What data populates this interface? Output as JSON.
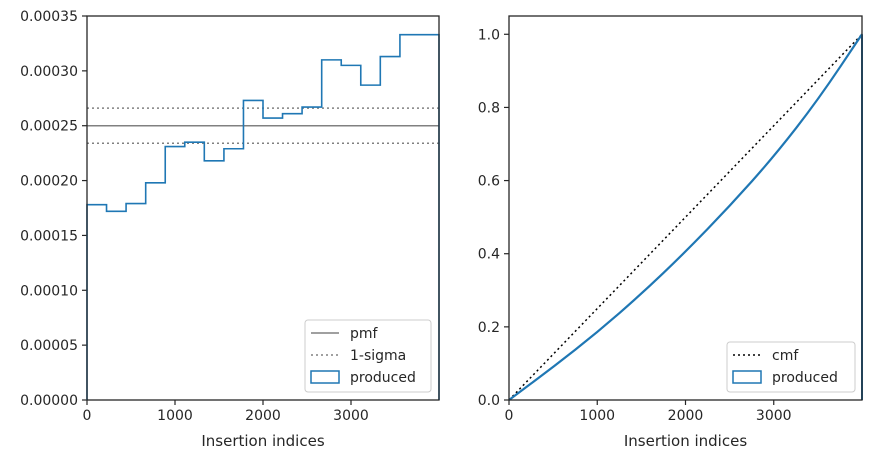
{
  "chart_data": [
    {
      "type": "histogram-step",
      "xlabel": "Insertion indices",
      "ylabel": "",
      "xlim": [
        0,
        4000
      ],
      "ylim": [
        0,
        0.00035
      ],
      "xticks": [
        "0",
        "1000",
        "2000",
        "3000"
      ],
      "yticks": [
        "0.00000",
        "0.00005",
        "0.00010",
        "0.00015",
        "0.00020",
        "0.00025",
        "0.00030",
        "0.00035"
      ],
      "legend_position": "lower-right",
      "grid": false,
      "bin_edges": [
        0,
        222,
        444,
        667,
        889,
        1111,
        1333,
        1556,
        1778,
        2000,
        2222,
        2444,
        2667,
        2889,
        3111,
        3333,
        3556,
        3778,
        4000
      ],
      "series": [
        {
          "name": "pmf",
          "style": "solid",
          "color": "#808080",
          "value": 0.00025
        },
        {
          "name": "1-sigma",
          "style": "dotted",
          "color": "#808080",
          "values": [
            0.000234,
            0.000266
          ]
        },
        {
          "name": "produced",
          "style": "step",
          "color": "#1f77b4",
          "values": [
            0.000178,
            0.000172,
            0.000179,
            0.000198,
            0.000231,
            0.000235,
            0.000218,
            0.000229,
            0.000273,
            0.000257,
            0.000261,
            0.000267,
            0.00031,
            0.000305,
            0.000287,
            0.000313,
            0.000333,
            0.000333
          ]
        }
      ]
    },
    {
      "type": "line",
      "xlabel": "Insertion indices",
      "ylabel": "",
      "xlim": [
        0,
        4000
      ],
      "ylim": [
        0,
        1.05
      ],
      "xticks": [
        "0",
        "1000",
        "2000",
        "3000"
      ],
      "yticks": [
        "0.0",
        "0.2",
        "0.4",
        "0.6",
        "0.8",
        "1.0"
      ],
      "legend_position": "lower-right",
      "grid": false,
      "series": [
        {
          "name": "cmf",
          "style": "dotted",
          "color": "#000000",
          "x": [
            0,
            4000
          ],
          "y": [
            0,
            1.0
          ]
        },
        {
          "name": "produced",
          "style": "solid",
          "color": "#1f77b4",
          "x": [
            0,
            500,
            1000,
            1500,
            2000,
            2500,
            3000,
            3500,
            4000
          ],
          "y": [
            0,
            0.09,
            0.185,
            0.29,
            0.405,
            0.53,
            0.665,
            0.82,
            1.0
          ]
        }
      ]
    }
  ]
}
